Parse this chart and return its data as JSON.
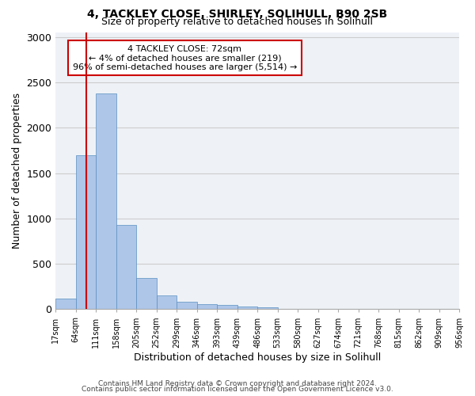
{
  "title1": "4, TACKLEY CLOSE, SHIRLEY, SOLIHULL, B90 2SB",
  "title2": "Size of property relative to detached houses in Solihull",
  "xlabel": "Distribution of detached houses by size in Solihull",
  "ylabel": "Number of detached properties",
  "bar_values": [
    115,
    1700,
    2380,
    930,
    345,
    155,
    80,
    55,
    45,
    30,
    25,
    0,
    0,
    0,
    0,
    0,
    0,
    0,
    0,
    0
  ],
  "tick_labels": [
    "17sqm",
    "64sqm",
    "111sqm",
    "158sqm",
    "205sqm",
    "252sqm",
    "299sqm",
    "346sqm",
    "393sqm",
    "439sqm",
    "486sqm",
    "533sqm",
    "580sqm",
    "627sqm",
    "674sqm",
    "721sqm",
    "768sqm",
    "815sqm",
    "862sqm",
    "909sqm",
    "956sqm"
  ],
  "bar_color": "#aec6e8",
  "bar_edge_color": "#5a8fc0",
  "vline_x": 1.0,
  "vline_color": "#cc0000",
  "annotation_line1": "4 TACKLEY CLOSE: 72sqm",
  "annotation_line2": "← 4% of detached houses are smaller (219)",
  "annotation_line3": "96% of semi-detached houses are larger (5,514) →",
  "annotation_box_color": "#cc0000",
  "ylim": [
    0,
    3050
  ],
  "yticks": [
    0,
    500,
    1000,
    1500,
    2000,
    2500,
    3000
  ],
  "grid_color": "#cccccc",
  "bg_color": "#eef2f7",
  "footer1": "Contains HM Land Registry data © Crown copyright and database right 2024.",
  "footer2": "Contains public sector information licensed under the Open Government Licence v3.0."
}
